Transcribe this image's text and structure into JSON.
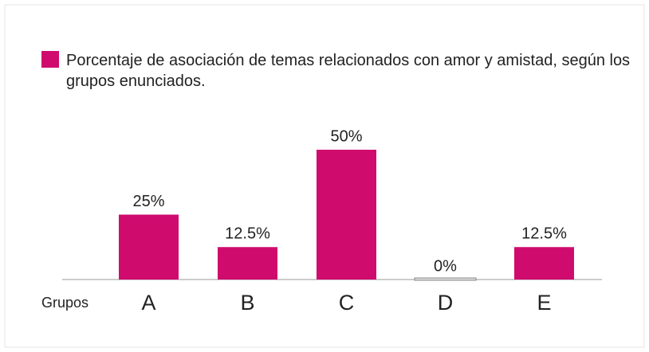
{
  "chart_data": {
    "type": "bar",
    "x_label": "Grupos",
    "categories": [
      "A",
      "B",
      "C",
      "D",
      "E"
    ],
    "series": [
      {
        "name": "Porcentaje de asociación de temas relacionados con amor y amistad, según los grupos enunciados.",
        "color": "#d00b6e",
        "values": [
          25,
          12.5,
          50,
          0,
          12.5
        ],
        "value_labels": [
          "25%",
          "12.5%",
          "50%",
          "0%",
          "12.5%"
        ]
      }
    ]
  }
}
